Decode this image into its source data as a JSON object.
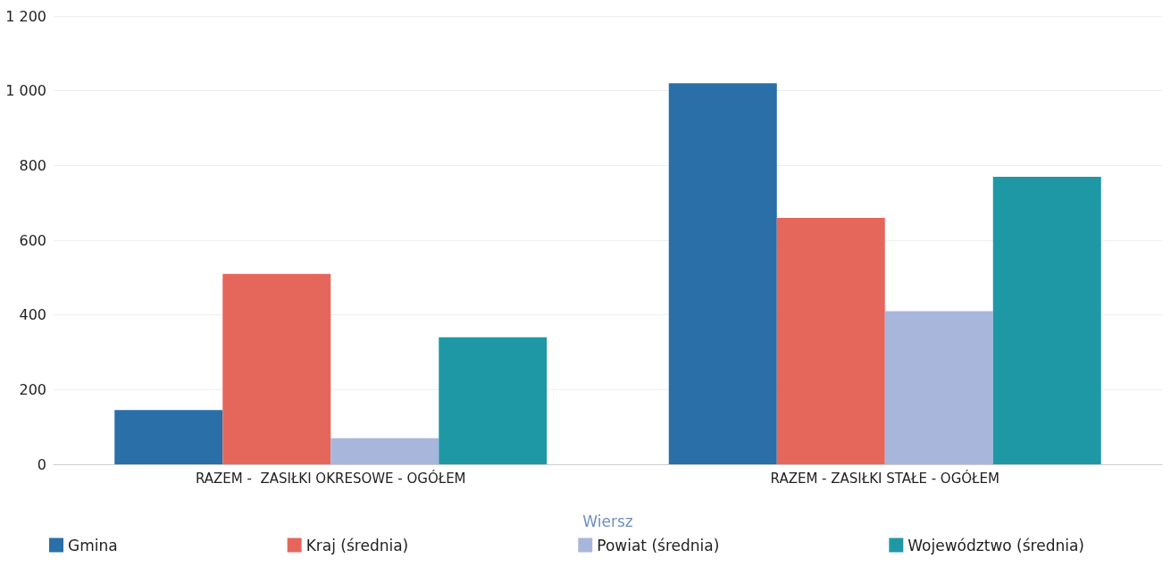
{
  "chart_data": {
    "type": "bar",
    "xlabel": "Wiersz",
    "categories": [
      "RAZEM -  ZASIŁKI OKRESOWE - OGÓŁEM",
      "RAZEM - ZASIŁKI STAŁE - OGÓŁEM"
    ],
    "series": [
      {
        "name": "Gmina",
        "color": "#2a6fa8",
        "values": [
          145,
          1020
        ]
      },
      {
        "name": "Kraj (średnia)",
        "color": "#e5675c",
        "values": [
          510,
          660
        ]
      },
      {
        "name": "Powiat (średnia)",
        "color": "#a9b6dc",
        "values": [
          70,
          410
        ]
      },
      {
        "name": "Województwo (średnia)",
        "color": "#1f98a6",
        "values": [
          340,
          770
        ]
      }
    ],
    "ylim": [
      0,
      1200
    ],
    "yticks": [
      0,
      200,
      400,
      600,
      800,
      {
        "value": 1000,
        "label": "1 000"
      },
      {
        "value": 1200,
        "label": "1 200"
      }
    ],
    "grid": "y",
    "legend": "bottom"
  }
}
